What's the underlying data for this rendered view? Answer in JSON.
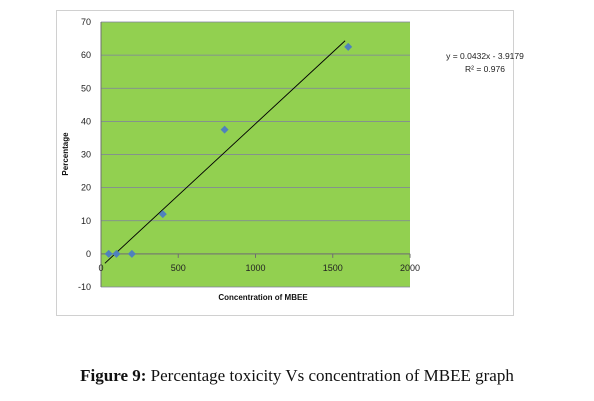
{
  "chart_data": {
    "type": "scatter",
    "plot_background": "#92d050",
    "marker_color": "#4f81bd",
    "xlabel": "Concentration of MBEE",
    "ylabel": "Percentage",
    "xlim": [
      0,
      2000
    ],
    "ylim": [
      -10,
      70
    ],
    "x_ticks": [
      "0",
      "500",
      "1000",
      "1500",
      "2000"
    ],
    "y_ticks": [
      "-10",
      "0",
      "10",
      "20",
      "30",
      "40",
      "50",
      "60",
      "70"
    ],
    "x_tick_values": [
      0,
      500,
      1000,
      1500,
      2000
    ],
    "y_tick_values": [
      -10,
      0,
      10,
      20,
      30,
      40,
      50,
      60,
      70
    ],
    "grid": "horizontal",
    "points": [
      {
        "x": 50,
        "y": 0
      },
      {
        "x": 100,
        "y": 0
      },
      {
        "x": 200,
        "y": 0
      },
      {
        "x": 400,
        "y": 12
      },
      {
        "x": 800,
        "y": 37.5
      },
      {
        "x": 1600,
        "y": 62.5
      }
    ],
    "trendline": {
      "slope": 0.0432,
      "intercept": -3.9179,
      "x_range": [
        25,
        1580
      ],
      "equation_label": "y = 0.0432x - 3.9179",
      "r2_label": "R² = 0.976"
    }
  },
  "caption": {
    "label": "Figure 9:",
    "text": " Percentage toxicity Vs concentration of MBEE graph"
  }
}
